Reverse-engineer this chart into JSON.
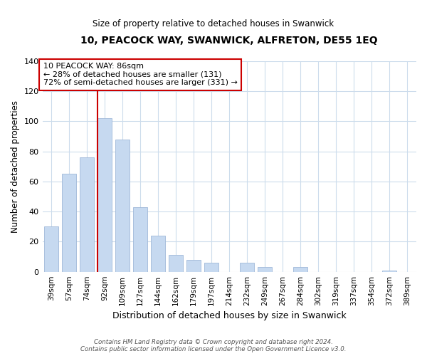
{
  "title": "10, PEACOCK WAY, SWANWICK, ALFRETON, DE55 1EQ",
  "subtitle": "Size of property relative to detached houses in Swanwick",
  "xlabel": "Distribution of detached houses by size in Swanwick",
  "ylabel": "Number of detached properties",
  "bar_labels": [
    "39sqm",
    "57sqm",
    "74sqm",
    "92sqm",
    "109sqm",
    "127sqm",
    "144sqm",
    "162sqm",
    "179sqm",
    "197sqm",
    "214sqm",
    "232sqm",
    "249sqm",
    "267sqm",
    "284sqm",
    "302sqm",
    "319sqm",
    "337sqm",
    "354sqm",
    "372sqm",
    "389sqm"
  ],
  "bar_values": [
    30,
    65,
    76,
    102,
    88,
    43,
    24,
    11,
    8,
    6,
    0,
    6,
    3,
    0,
    3,
    0,
    0,
    0,
    0,
    1,
    0
  ],
  "bar_color": "#c6d9f0",
  "bar_edge_color": "#a0b8d8",
  "vline_x_index": 3,
  "vline_color": "#cc0000",
  "annotation_text": "10 PEACOCK WAY: 86sqm\n← 28% of detached houses are smaller (131)\n72% of semi-detached houses are larger (331) →",
  "annotation_box_color": "#ffffff",
  "annotation_box_edge": "#cc0000",
  "ylim": [
    0,
    140
  ],
  "yticks": [
    0,
    20,
    40,
    60,
    80,
    100,
    120,
    140
  ],
  "footer_line1": "Contains HM Land Registry data © Crown copyright and database right 2024.",
  "footer_line2": "Contains public sector information licensed under the Open Government Licence v3.0.",
  "bg_color": "#ffffff",
  "grid_color": "#ccdcec",
  "bar_width": 0.8
}
